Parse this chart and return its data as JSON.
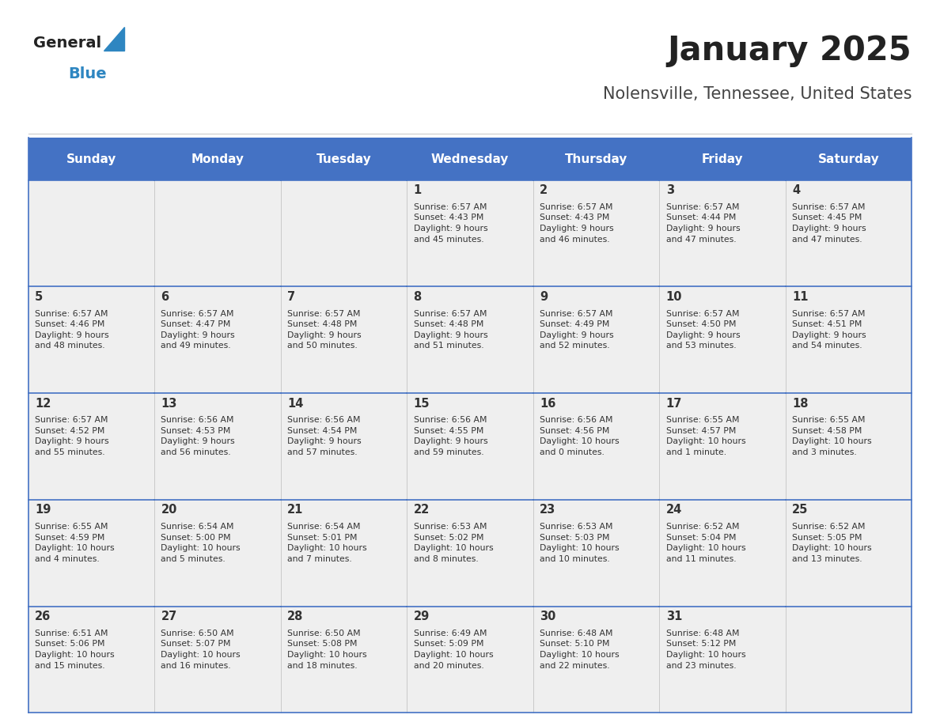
{
  "title": "January 2025",
  "subtitle": "Nolensville, Tennessee, United States",
  "days_of_week": [
    "Sunday",
    "Monday",
    "Tuesday",
    "Wednesday",
    "Thursday",
    "Friday",
    "Saturday"
  ],
  "header_bg": "#4472C4",
  "header_text": "#FFFFFF",
  "cell_bg_light": "#EFEFEF",
  "border_color": "#4472C4",
  "title_color": "#222222",
  "subtitle_color": "#444444",
  "text_color": "#333333",
  "logo_general_color": "#222222",
  "logo_blue_color": "#2E86C1",
  "calendar_data": [
    [
      {
        "day": null,
        "sunrise": null,
        "sunset": null,
        "daylight": null
      },
      {
        "day": null,
        "sunrise": null,
        "sunset": null,
        "daylight": null
      },
      {
        "day": null,
        "sunrise": null,
        "sunset": null,
        "daylight": null
      },
      {
        "day": 1,
        "sunrise": "6:57 AM",
        "sunset": "4:43 PM",
        "daylight": "9 hours and 45 minutes."
      },
      {
        "day": 2,
        "sunrise": "6:57 AM",
        "sunset": "4:43 PM",
        "daylight": "9 hours and 46 minutes."
      },
      {
        "day": 3,
        "sunrise": "6:57 AM",
        "sunset": "4:44 PM",
        "daylight": "9 hours and 47 minutes."
      },
      {
        "day": 4,
        "sunrise": "6:57 AM",
        "sunset": "4:45 PM",
        "daylight": "9 hours and 47 minutes."
      }
    ],
    [
      {
        "day": 5,
        "sunrise": "6:57 AM",
        "sunset": "4:46 PM",
        "daylight": "9 hours and 48 minutes."
      },
      {
        "day": 6,
        "sunrise": "6:57 AM",
        "sunset": "4:47 PM",
        "daylight": "9 hours and 49 minutes."
      },
      {
        "day": 7,
        "sunrise": "6:57 AM",
        "sunset": "4:48 PM",
        "daylight": "9 hours and 50 minutes."
      },
      {
        "day": 8,
        "sunrise": "6:57 AM",
        "sunset": "4:48 PM",
        "daylight": "9 hours and 51 minutes."
      },
      {
        "day": 9,
        "sunrise": "6:57 AM",
        "sunset": "4:49 PM",
        "daylight": "9 hours and 52 minutes."
      },
      {
        "day": 10,
        "sunrise": "6:57 AM",
        "sunset": "4:50 PM",
        "daylight": "9 hours and 53 minutes."
      },
      {
        "day": 11,
        "sunrise": "6:57 AM",
        "sunset": "4:51 PM",
        "daylight": "9 hours and 54 minutes."
      }
    ],
    [
      {
        "day": 12,
        "sunrise": "6:57 AM",
        "sunset": "4:52 PM",
        "daylight": "9 hours and 55 minutes."
      },
      {
        "day": 13,
        "sunrise": "6:56 AM",
        "sunset": "4:53 PM",
        "daylight": "9 hours and 56 minutes."
      },
      {
        "day": 14,
        "sunrise": "6:56 AM",
        "sunset": "4:54 PM",
        "daylight": "9 hours and 57 minutes."
      },
      {
        "day": 15,
        "sunrise": "6:56 AM",
        "sunset": "4:55 PM",
        "daylight": "9 hours and 59 minutes."
      },
      {
        "day": 16,
        "sunrise": "6:56 AM",
        "sunset": "4:56 PM",
        "daylight": "10 hours and 0 minutes."
      },
      {
        "day": 17,
        "sunrise": "6:55 AM",
        "sunset": "4:57 PM",
        "daylight": "10 hours and 1 minute."
      },
      {
        "day": 18,
        "sunrise": "6:55 AM",
        "sunset": "4:58 PM",
        "daylight": "10 hours and 3 minutes."
      }
    ],
    [
      {
        "day": 19,
        "sunrise": "6:55 AM",
        "sunset": "4:59 PM",
        "daylight": "10 hours and 4 minutes."
      },
      {
        "day": 20,
        "sunrise": "6:54 AM",
        "sunset": "5:00 PM",
        "daylight": "10 hours and 5 minutes."
      },
      {
        "day": 21,
        "sunrise": "6:54 AM",
        "sunset": "5:01 PM",
        "daylight": "10 hours and 7 minutes."
      },
      {
        "day": 22,
        "sunrise": "6:53 AM",
        "sunset": "5:02 PM",
        "daylight": "10 hours and 8 minutes."
      },
      {
        "day": 23,
        "sunrise": "6:53 AM",
        "sunset": "5:03 PM",
        "daylight": "10 hours and 10 minutes."
      },
      {
        "day": 24,
        "sunrise": "6:52 AM",
        "sunset": "5:04 PM",
        "daylight": "10 hours and 11 minutes."
      },
      {
        "day": 25,
        "sunrise": "6:52 AM",
        "sunset": "5:05 PM",
        "daylight": "10 hours and 13 minutes."
      }
    ],
    [
      {
        "day": 26,
        "sunrise": "6:51 AM",
        "sunset": "5:06 PM",
        "daylight": "10 hours and 15 minutes."
      },
      {
        "day": 27,
        "sunrise": "6:50 AM",
        "sunset": "5:07 PM",
        "daylight": "10 hours and 16 minutes."
      },
      {
        "day": 28,
        "sunrise": "6:50 AM",
        "sunset": "5:08 PM",
        "daylight": "10 hours and 18 minutes."
      },
      {
        "day": 29,
        "sunrise": "6:49 AM",
        "sunset": "5:09 PM",
        "daylight": "10 hours and 20 minutes."
      },
      {
        "day": 30,
        "sunrise": "6:48 AM",
        "sunset": "5:10 PM",
        "daylight": "10 hours and 22 minutes."
      },
      {
        "day": 31,
        "sunrise": "6:48 AM",
        "sunset": "5:12 PM",
        "daylight": "10 hours and 23 minutes."
      },
      {
        "day": null,
        "sunrise": null,
        "sunset": null,
        "daylight": null
      }
    ]
  ]
}
